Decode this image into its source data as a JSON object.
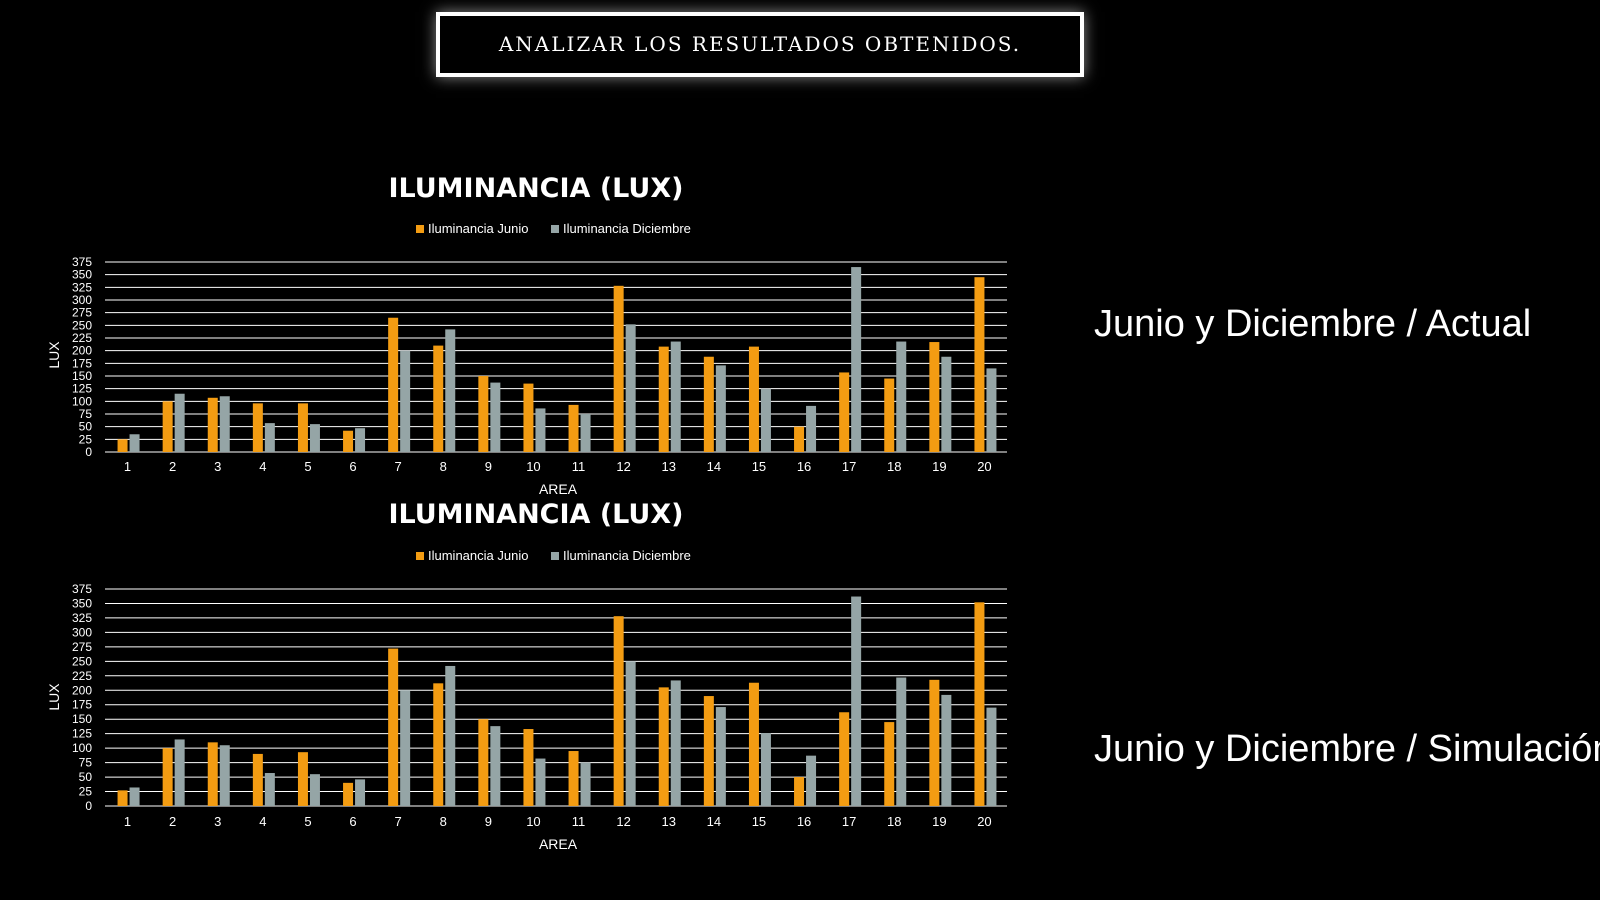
{
  "banner": {
    "text": "ANALIZAR LOS RESULTADOS OBTENIDOS."
  },
  "side_labels": [
    "Junio y Diciembre / Actual",
    "Junio y Diciembre / Simulación"
  ],
  "colors": {
    "background": "#000000",
    "junio": "#f39c12",
    "diciembre": "#95a5a6",
    "grid": "#ffffff",
    "text": "#ffffff"
  },
  "chart_data": [
    {
      "type": "bar",
      "title": "ILUMINANCIA (LUX)",
      "xlabel": "AREA",
      "ylabel": "LUX",
      "ylim": [
        0,
        375
      ],
      "yticks": [
        "0",
        "25",
        "50",
        "75",
        "100",
        "125",
        "150",
        "175",
        "200",
        "225",
        "250",
        "275",
        "300",
        "325",
        "350",
        "375"
      ],
      "categories": [
        "1",
        "2",
        "3",
        "4",
        "5",
        "6",
        "7",
        "8",
        "9",
        "10",
        "11",
        "12",
        "13",
        "14",
        "15",
        "16",
        "17",
        "18",
        "19",
        "20"
      ],
      "legend_position": "top",
      "grid": true,
      "series": [
        {
          "name": "Iluminancia Junio",
          "values": [
            25,
            100,
            107,
            96,
            96,
            42,
            265,
            210,
            150,
            135,
            93,
            328,
            208,
            188,
            208,
            50,
            157,
            145,
            217,
            345
          ]
        },
        {
          "name": "Iluminancia Diciembre",
          "values": [
            35,
            115,
            110,
            57,
            55,
            47,
            200,
            242,
            137,
            86,
            75,
            252,
            218,
            171,
            125,
            91,
            365,
            218,
            188,
            165
          ]
        }
      ]
    },
    {
      "type": "bar",
      "title": "ILUMINANCIA (LUX)",
      "xlabel": "AREA",
      "ylabel": "LUX",
      "ylim": [
        0,
        375
      ],
      "yticks": [
        "0",
        "25",
        "50",
        "75",
        "100",
        "125",
        "150",
        "175",
        "200",
        "225",
        "250",
        "275",
        "300",
        "325",
        "350",
        "375"
      ],
      "categories": [
        "1",
        "2",
        "3",
        "4",
        "5",
        "6",
        "7",
        "8",
        "9",
        "10",
        "11",
        "12",
        "13",
        "14",
        "15",
        "16",
        "17",
        "18",
        "19",
        "20"
      ],
      "legend_position": "top",
      "grid": true,
      "series": [
        {
          "name": "Iluminancia Junio",
          "values": [
            27,
            100,
            110,
            90,
            93,
            40,
            272,
            212,
            150,
            133,
            95,
            328,
            205,
            190,
            213,
            50,
            162,
            145,
            218,
            352
          ]
        },
        {
          "name": "Iluminancia Diciembre",
          "values": [
            32,
            115,
            105,
            57,
            55,
            46,
            200,
            242,
            138,
            82,
            75,
            250,
            217,
            171,
            126,
            87,
            362,
            222,
            192,
            170
          ]
        }
      ]
    }
  ]
}
